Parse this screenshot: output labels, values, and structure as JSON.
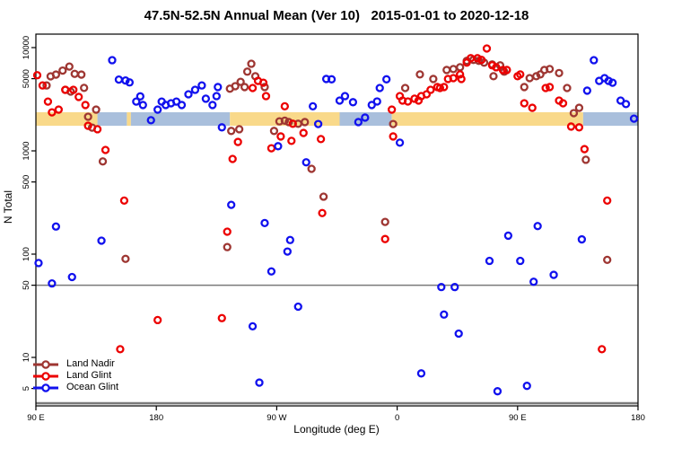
{
  "colors": {
    "band_land": "#F9D98A",
    "band_ocean": "#A9BFDC",
    "grid_line": "#7A7A7A",
    "axis": "#000000",
    "land_nadir": "#9E3632",
    "land_glint": "#EC0000",
    "ocean_glint": "#1111EE"
  },
  "chart_data": {
    "type": "scatter",
    "title": "47.5N-52.5N Annual Mean (Ver 10)   2015-01-01 to 2020-12-18",
    "xlabel": "Longitude (deg E)",
    "ylabel": "N Total",
    "x_axis": {
      "note": "t is degrees east of 90E along a wrapped 450-degree axis",
      "range_t": [
        0,
        450
      ],
      "ticks": [
        {
          "t": 0,
          "label": "90 E"
        },
        {
          "t": 90,
          "label": "180"
        },
        {
          "t": 180,
          "label": "90 W"
        },
        {
          "t": 270,
          "label": "0"
        },
        {
          "t": 360,
          "label": "90 E"
        },
        {
          "t": 450,
          "label": "180"
        }
      ]
    },
    "y_axis": {
      "scale": "log",
      "ticks": [
        5,
        10,
        50,
        100,
        500,
        1000,
        5000,
        10000
      ],
      "range": [
        3.4,
        13500
      ]
    },
    "reference_lines": [
      {
        "value": 50
      },
      {
        "value": 3.6
      }
    ],
    "band": {
      "v_top": 2365,
      "v_bottom": 1750,
      "segments": [
        {
          "surface": "land",
          "t0": 0,
          "t1": 46
        },
        {
          "surface": "ocean",
          "t0": 46,
          "t1": 68
        },
        {
          "surface": "land",
          "t0": 68,
          "t1": 71
        },
        {
          "surface": "ocean",
          "t0": 71,
          "t1": 145
        },
        {
          "surface": "land",
          "t0": 145,
          "t1": 227
        },
        {
          "surface": "ocean",
          "t0": 227,
          "t1": 266
        },
        {
          "surface": "land",
          "t0": 266,
          "t1": 409
        },
        {
          "surface": "ocean",
          "t0": 409,
          "t1": 450
        }
      ]
    },
    "legend": {
      "position": "bottom-left"
    },
    "series": [
      {
        "name": "Land Nadir",
        "color_key": "land_nadir",
        "points": [
          [
            8,
            4300
          ],
          [
            11,
            5270
          ],
          [
            15,
            5480
          ],
          [
            20,
            5990
          ],
          [
            25,
            6550
          ],
          [
            29,
            5570
          ],
          [
            34,
            5480
          ],
          [
            22,
            3900
          ],
          [
            26,
            3750
          ],
          [
            36,
            4070
          ],
          [
            39,
            2140
          ],
          [
            42,
            1680
          ],
          [
            45,
            2510
          ],
          [
            50,
            790
          ],
          [
            67,
            90
          ],
          [
            143,
            117
          ],
          [
            145,
            4000
          ],
          [
            149,
            4230
          ],
          [
            153,
            4660
          ],
          [
            156,
            4150
          ],
          [
            158,
            5850
          ],
          [
            161,
            6970
          ],
          [
            164,
            5280
          ],
          [
            171,
            4150
          ],
          [
            146,
            1560
          ],
          [
            152,
            1620
          ],
          [
            178,
            1560
          ],
          [
            182,
            1930
          ],
          [
            186,
            1960
          ],
          [
            189,
            1900
          ],
          [
            196,
            1830
          ],
          [
            201,
            1900
          ],
          [
            206,
            670
          ],
          [
            215,
            360
          ],
          [
            261,
            205
          ],
          [
            267,
            1820
          ],
          [
            276,
            4060
          ],
          [
            287,
            5500
          ],
          [
            297,
            4970
          ],
          [
            307,
            6070
          ],
          [
            312,
            6200
          ],
          [
            317,
            6450
          ],
          [
            322,
            7440
          ],
          [
            327,
            7600
          ],
          [
            331,
            7440
          ],
          [
            335,
            7150
          ],
          [
            341,
            6870
          ],
          [
            342,
            5280
          ],
          [
            347,
            6730
          ],
          [
            350,
            5850
          ],
          [
            365,
            4150
          ],
          [
            369,
            5060
          ],
          [
            374,
            5280
          ],
          [
            377,
            5500
          ],
          [
            380,
            6070
          ],
          [
            384,
            6200
          ],
          [
            391,
            5670
          ],
          [
            397,
            4060
          ],
          [
            402,
            2320
          ],
          [
            406,
            2610
          ],
          [
            411,
            820
          ],
          [
            427,
            88
          ]
        ]
      },
      {
        "name": "Land Glint",
        "color_key": "land_glint",
        "points": [
          [
            1,
            5400
          ],
          [
            5,
            4300
          ],
          [
            9,
            3000
          ],
          [
            12,
            2360
          ],
          [
            17,
            2510
          ],
          [
            22,
            3900
          ],
          [
            28,
            3900
          ],
          [
            32,
            3330
          ],
          [
            37,
            2780
          ],
          [
            39,
            1750
          ],
          [
            46,
            1620
          ],
          [
            52,
            1020
          ],
          [
            63,
            12
          ],
          [
            66,
            330
          ],
          [
            91,
            23
          ],
          [
            139,
            24
          ],
          [
            143,
            165
          ],
          [
            147,
            835
          ],
          [
            151,
            1220
          ],
          [
            162,
            4060
          ],
          [
            166,
            4760
          ],
          [
            170,
            4570
          ],
          [
            172,
            3390
          ],
          [
            176,
            1060
          ],
          [
            183,
            1380
          ],
          [
            186,
            2700
          ],
          [
            191,
            1250
          ],
          [
            192,
            1830
          ],
          [
            200,
            1490
          ],
          [
            213,
            1300
          ],
          [
            214,
            250
          ],
          [
            261,
            140
          ],
          [
            266,
            2510
          ],
          [
            267,
            1380
          ],
          [
            272,
            3390
          ],
          [
            274,
            3070
          ],
          [
            278,
            3010
          ],
          [
            283,
            3200
          ],
          [
            286,
            3070
          ],
          [
            288,
            3390
          ],
          [
            292,
            3530
          ],
          [
            295,
            3900
          ],
          [
            300,
            4150
          ],
          [
            302,
            4060
          ],
          [
            305,
            4150
          ],
          [
            308,
            4970
          ],
          [
            312,
            5060
          ],
          [
            317,
            5500
          ],
          [
            318,
            4970
          ],
          [
            322,
            7150
          ],
          [
            325,
            7890
          ],
          [
            330,
            7890
          ],
          [
            333,
            7600
          ],
          [
            337,
            9800
          ],
          [
            341,
            6730
          ],
          [
            344,
            6450
          ],
          [
            349,
            6070
          ],
          [
            352,
            6070
          ],
          [
            360,
            5280
          ],
          [
            362,
            5500
          ],
          [
            365,
            2890
          ],
          [
            371,
            2610
          ],
          [
            381,
            4060
          ],
          [
            384,
            4150
          ],
          [
            391,
            3070
          ],
          [
            394,
            2890
          ],
          [
            400,
            1720
          ],
          [
            406,
            1690
          ],
          [
            410,
            1040
          ],
          [
            423,
            12
          ],
          [
            427,
            330
          ]
        ]
      },
      {
        "name": "Ocean Glint",
        "color_key": "ocean_glint",
        "points": [
          [
            2,
            82
          ],
          [
            12,
            52
          ],
          [
            15,
            185
          ],
          [
            27,
            60
          ],
          [
            49,
            135
          ],
          [
            57,
            7550
          ],
          [
            62,
            4900
          ],
          [
            67,
            4800
          ],
          [
            70,
            4600
          ],
          [
            75,
            3000
          ],
          [
            78,
            3370
          ],
          [
            80,
            2780
          ],
          [
            86,
            1980
          ],
          [
            91,
            2510
          ],
          [
            94,
            3000
          ],
          [
            97,
            2780
          ],
          [
            101,
            2890
          ],
          [
            105,
            3000
          ],
          [
            109,
            2780
          ],
          [
            114,
            3530
          ],
          [
            119,
            3900
          ],
          [
            124,
            4300
          ],
          [
            127,
            3200
          ],
          [
            132,
            2780
          ],
          [
            135,
            3390
          ],
          [
            136,
            4150
          ],
          [
            139,
            1690
          ],
          [
            146,
            300
          ],
          [
            162,
            20
          ],
          [
            167,
            5.7
          ],
          [
            171,
            200
          ],
          [
            176,
            68
          ],
          [
            181,
            1110
          ],
          [
            188,
            106
          ],
          [
            190,
            137
          ],
          [
            196,
            31
          ],
          [
            202,
            775
          ],
          [
            207,
            2700
          ],
          [
            211,
            1820
          ],
          [
            217,
            4970
          ],
          [
            221,
            4930
          ],
          [
            227,
            3070
          ],
          [
            231,
            3390
          ],
          [
            237,
            2960
          ],
          [
            241,
            1900
          ],
          [
            246,
            2100
          ],
          [
            251,
            2780
          ],
          [
            255,
            3010
          ],
          [
            257,
            4060
          ],
          [
            262,
            4930
          ],
          [
            272,
            1200
          ],
          [
            288,
            7
          ],
          [
            303,
            48
          ],
          [
            305,
            26
          ],
          [
            313,
            48
          ],
          [
            316,
            17
          ],
          [
            339,
            86
          ],
          [
            345,
            4.7
          ],
          [
            353,
            151
          ],
          [
            362,
            86
          ],
          [
            367,
            5.3
          ],
          [
            372,
            54
          ],
          [
            375,
            187
          ],
          [
            387,
            63
          ],
          [
            408,
            139
          ],
          [
            412,
            3830
          ],
          [
            417,
            7550
          ],
          [
            421,
            4760
          ],
          [
            425,
            5060
          ],
          [
            428,
            4760
          ],
          [
            431,
            4570
          ],
          [
            437,
            3070
          ],
          [
            441,
            2840
          ],
          [
            447,
            2050
          ]
        ]
      }
    ]
  }
}
